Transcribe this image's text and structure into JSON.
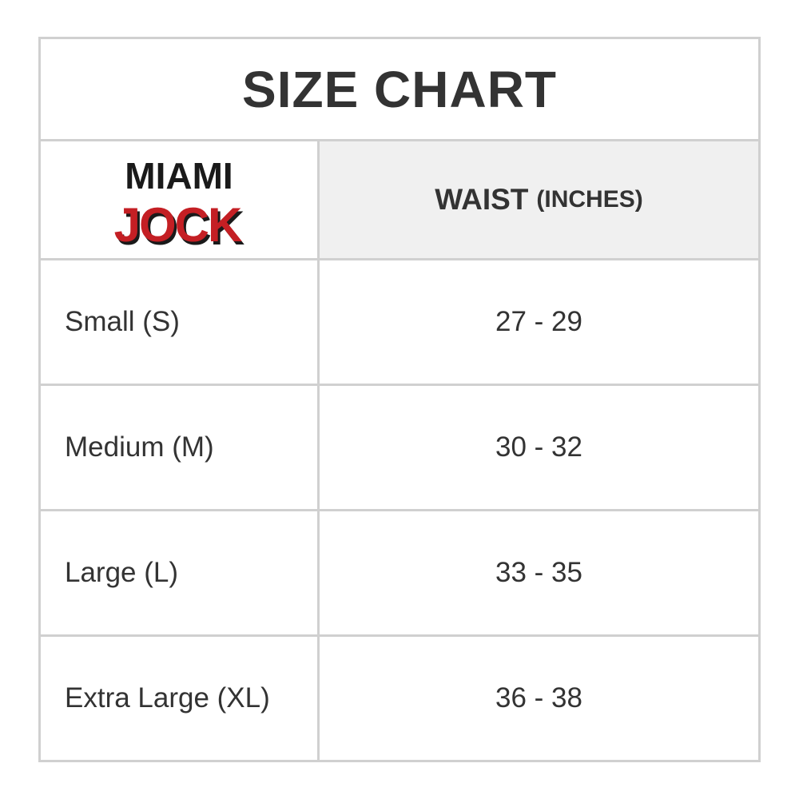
{
  "title": "SIZE CHART",
  "logo": {
    "line1": "MIAMI",
    "line2": "JOCK",
    "colors": {
      "black": "#1a1a1a",
      "red": "#c41f24"
    }
  },
  "header": {
    "column": "WAIST",
    "unit": "(INCHES)"
  },
  "rows": [
    {
      "size": "Small (S)",
      "waist": "27 - 29"
    },
    {
      "size": "Medium (M)",
      "waist": "30 - 32"
    },
    {
      "size": "Large (L)",
      "waist": "33 - 35"
    },
    {
      "size": "Extra Large (XL)",
      "waist": "36 - 38"
    }
  ]
}
